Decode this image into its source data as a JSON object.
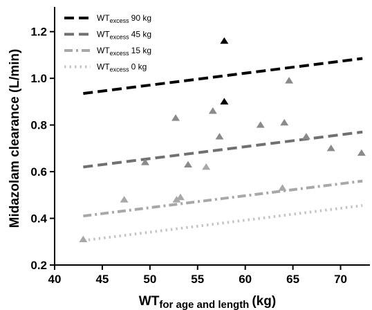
{
  "chart_data": {
    "type": "scatter",
    "xlabel_main": "WT",
    "xlabel_sub": "for age and length",
    "xlabel_unit": "(kg)",
    "ylabel": "Midazolam clearance (L/min)",
    "xlim": [
      40,
      72.5
    ],
    "ylim": [
      0.2,
      1.3
    ],
    "xticks": [
      40,
      45,
      50,
      55,
      60,
      65,
      70
    ],
    "yticks": [
      0.2,
      0.4,
      0.6,
      0.8,
      1.0,
      1.2
    ],
    "ytick_labels": [
      "0.2",
      "0.4",
      "0.6",
      "0.8",
      "1.0",
      "1.2"
    ],
    "legend_position": "top-left",
    "series": [
      {
        "label_main": "WT",
        "label_sub": "excess",
        "label_value": "90 kg",
        "color": "#000000",
        "style": "dash",
        "line": [
          [
            43,
            0.935
          ],
          [
            72.3,
            1.085
          ]
        ]
      },
      {
        "label_main": "WT",
        "label_sub": "excess",
        "label_value": "45 kg",
        "color": "#707070",
        "style": "dash",
        "line": [
          [
            43,
            0.62
          ],
          [
            72.3,
            0.77
          ]
        ]
      },
      {
        "label_main": "WT",
        "label_sub": "excess",
        "label_value": "15 kg",
        "color": "#a8a8a8",
        "style": "dashdot",
        "line": [
          [
            43,
            0.41
          ],
          [
            72.3,
            0.56
          ]
        ]
      },
      {
        "label_main": "WT",
        "label_sub": "excess",
        "label_value": "0 kg",
        "color": "#c4c4c4",
        "style": "dot",
        "line": [
          [
            43,
            0.305
          ],
          [
            72.3,
            0.455
          ]
        ]
      }
    ],
    "points": [
      {
        "x": 43.0,
        "y": 0.31,
        "color": "#a8a8a8"
      },
      {
        "x": 47.3,
        "y": 0.48,
        "color": "#a8a8a8"
      },
      {
        "x": 49.5,
        "y": 0.64,
        "color": "#8a8a8a"
      },
      {
        "x": 52.7,
        "y": 0.83,
        "color": "#8a8a8a"
      },
      {
        "x": 52.8,
        "y": 0.48,
        "color": "#a8a8a8"
      },
      {
        "x": 53.2,
        "y": 0.49,
        "color": "#a8a8a8"
      },
      {
        "x": 54.0,
        "y": 0.63,
        "color": "#8a8a8a"
      },
      {
        "x": 55.9,
        "y": 0.62,
        "color": "#a8a8a8"
      },
      {
        "x": 56.6,
        "y": 0.86,
        "color": "#8a8a8a"
      },
      {
        "x": 57.3,
        "y": 0.75,
        "color": "#8a8a8a"
      },
      {
        "x": 57.8,
        "y": 1.16,
        "color": "#000000"
      },
      {
        "x": 57.8,
        "y": 0.9,
        "color": "#000000"
      },
      {
        "x": 61.6,
        "y": 0.8,
        "color": "#8a8a8a"
      },
      {
        "x": 63.9,
        "y": 0.53,
        "color": "#a8a8a8"
      },
      {
        "x": 64.1,
        "y": 0.81,
        "color": "#8a8a8a"
      },
      {
        "x": 64.6,
        "y": 0.99,
        "color": "#8a8a8a"
      },
      {
        "x": 66.4,
        "y": 0.75,
        "color": "#8a8a8a"
      },
      {
        "x": 69.0,
        "y": 0.7,
        "color": "#8a8a8a"
      },
      {
        "x": 72.2,
        "y": 0.68,
        "color": "#8a8a8a"
      }
    ]
  }
}
